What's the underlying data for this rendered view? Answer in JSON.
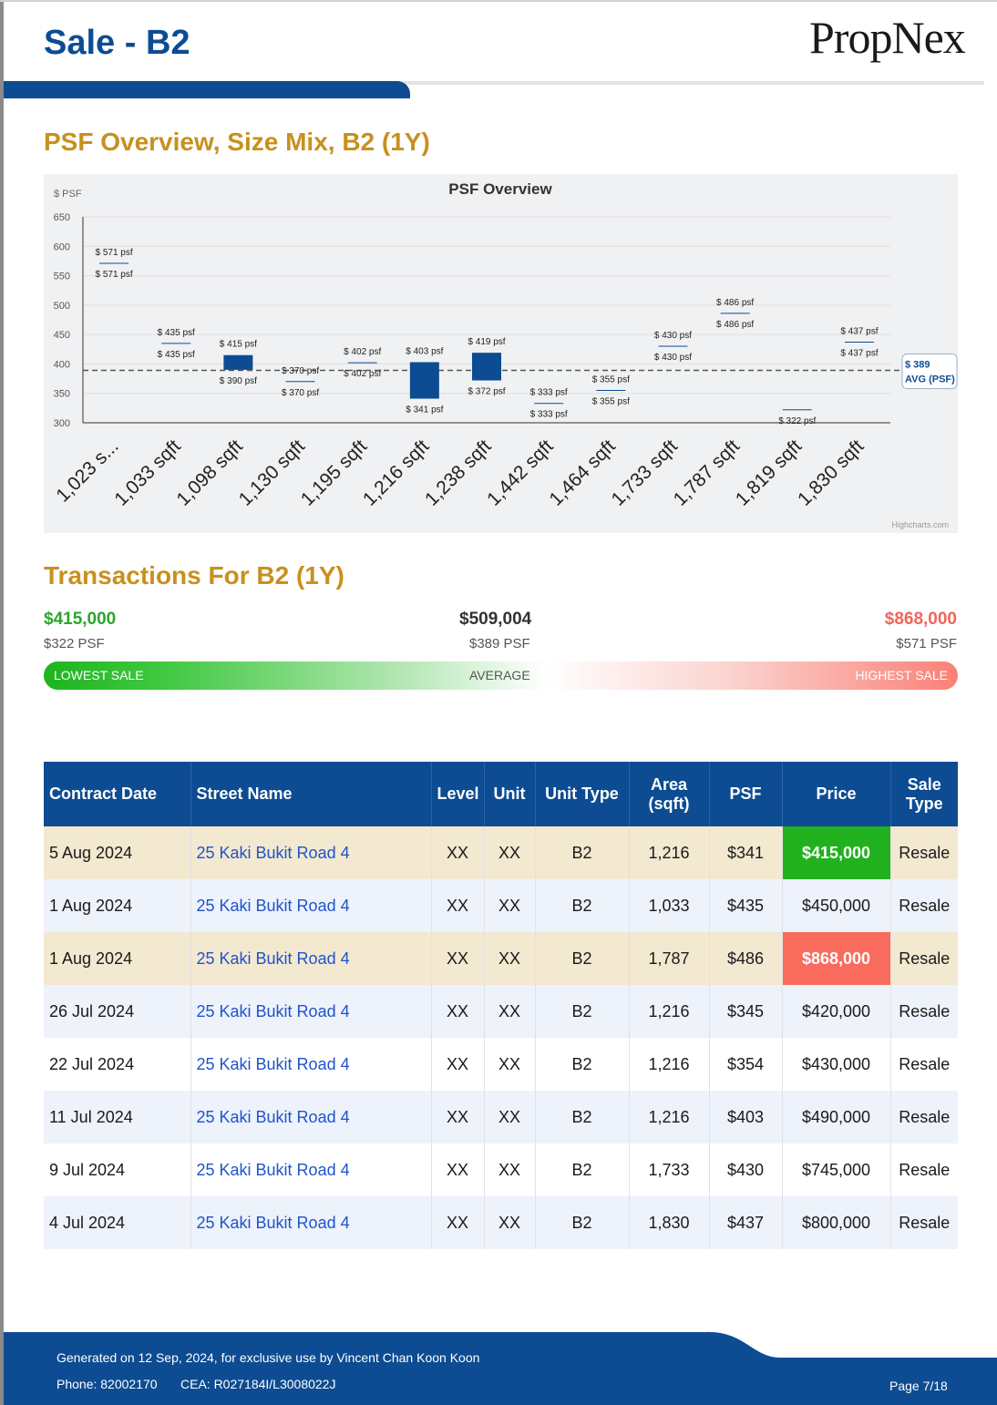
{
  "header": {
    "title": "Sale - B2",
    "logo": "PropNex"
  },
  "sections": {
    "psf_title": "PSF Overview, Size Mix, B2 (1Y)",
    "transactions_title": "Transactions For B2 (1Y)"
  },
  "chart_data": {
    "type": "box",
    "title": "PSF Overview",
    "ylabel": "$ PSF",
    "ylim": [
      300,
      650
    ],
    "yticks": [
      300,
      350,
      400,
      450,
      500,
      550,
      600,
      650
    ],
    "categories": [
      "1,023 s...",
      "1,033 sqft",
      "1,098 sqft",
      "1,130 sqft",
      "1,195 sqft",
      "1,216 sqft",
      "1,238 sqft",
      "1,442 sqft",
      "1,464 sqft",
      "1,733 sqft",
      "1,787 sqft",
      "1,819 sqft",
      "1,830 sqft"
    ],
    "boxes": [
      {
        "high": 571,
        "low": 571,
        "high_label": "$ 571 psf",
        "low_label": "$ 571 psf"
      },
      {
        "high": 435,
        "low": 435,
        "high_label": "$ 435 psf",
        "low_label": "$ 435 psf"
      },
      {
        "high": 415,
        "low": 390,
        "high_label": "$ 415 psf",
        "low_label": "$ 390 psf"
      },
      {
        "high": 370,
        "low": 370,
        "high_label": "$ 370 psf",
        "low_label": "$ 370 psf"
      },
      {
        "high": 402,
        "low": 402,
        "high_label": "$ 402 psf",
        "low_label": "$ 402 psf"
      },
      {
        "high": 403,
        "low": 341,
        "high_label": "$ 403 psf",
        "low_label": "$ 341 psf"
      },
      {
        "high": 419,
        "low": 372,
        "high_label": "$ 419 psf",
        "low_label": "$ 372 psf"
      },
      {
        "high": 333,
        "low": 333,
        "high_label": "$ 333 psf",
        "low_label": "$ 333 psf"
      },
      {
        "high": 355,
        "low": 355,
        "high_label": "$ 355 psf",
        "low_label": "$ 355 psf"
      },
      {
        "high": 430,
        "low": 430,
        "high_label": "$ 430 psf",
        "low_label": "$ 430 psf"
      },
      {
        "high": 486,
        "low": 486,
        "high_label": "$ 486 psf",
        "low_label": "$ 486 psf"
      },
      {
        "high": 322,
        "low": 322,
        "high_label": "",
        "low_label": "$ 322 psf"
      },
      {
        "high": 437,
        "low": 437,
        "high_label": "$ 437 psf",
        "low_label": "$ 437 psf"
      }
    ],
    "average": 389,
    "average_label_value": "$ 389",
    "average_label_text": "AVG (PSF)",
    "credit": "Highcharts.com",
    "box_color": "#0d4c92",
    "grid": true
  },
  "summary": {
    "lowest": {
      "price": "$415,000",
      "psf": "$322 PSF",
      "label": "LOWEST SALE",
      "color": "#2aa52a"
    },
    "average": {
      "price": "$509,004",
      "psf": "$389 PSF",
      "label": "AVERAGE"
    },
    "highest": {
      "price": "$868,000",
      "psf": "$571 PSF",
      "label": "HIGHEST SALE",
      "color": "#f0655a"
    }
  },
  "table": {
    "headers": [
      "Contract Date",
      "Street Name",
      "Level",
      "Unit",
      "Unit Type",
      "Area (sqft)",
      "PSF",
      "Price",
      "Sale Type"
    ],
    "rows": [
      [
        "5 Aug 2024",
        "25 Kaki Bukit Road 4",
        "XX",
        "XX",
        "B2",
        "1,216",
        "$341",
        "$415,000",
        "Resale"
      ],
      [
        "1 Aug 2024",
        "25 Kaki Bukit Road 4",
        "XX",
        "XX",
        "B2",
        "1,033",
        "$435",
        "$450,000",
        "Resale"
      ],
      [
        "1 Aug 2024",
        "25 Kaki Bukit Road 4",
        "XX",
        "XX",
        "B2",
        "1,787",
        "$486",
        "$868,000",
        "Resale"
      ],
      [
        "26 Jul 2024",
        "25 Kaki Bukit Road 4",
        "XX",
        "XX",
        "B2",
        "1,216",
        "$345",
        "$420,000",
        "Resale"
      ],
      [
        "22 Jul 2024",
        "25 Kaki Bukit Road 4",
        "XX",
        "XX",
        "B2",
        "1,216",
        "$354",
        "$430,000",
        "Resale"
      ],
      [
        "11 Jul 2024",
        "25 Kaki Bukit Road 4",
        "XX",
        "XX",
        "B2",
        "1,216",
        "$403",
        "$490,000",
        "Resale"
      ],
      [
        "9 Jul 2024",
        "25 Kaki Bukit Road 4",
        "XX",
        "XX",
        "B2",
        "1,733",
        "$430",
        "$745,000",
        "Resale"
      ],
      [
        "4 Jul 2024",
        "25 Kaki Bukit Road 4",
        "XX",
        "XX",
        "B2",
        "1,830",
        "$437",
        "$800,000",
        "Resale"
      ]
    ]
  },
  "footer": {
    "generated": "Generated on 12 Sep, 2024, for exclusive use by Vincent Chan Koon Koon",
    "phone": "Phone: 82002170",
    "cea": "CEA: R027184I/L3008022J",
    "page": "Page 7/18",
    "color": "#0d4c92"
  }
}
